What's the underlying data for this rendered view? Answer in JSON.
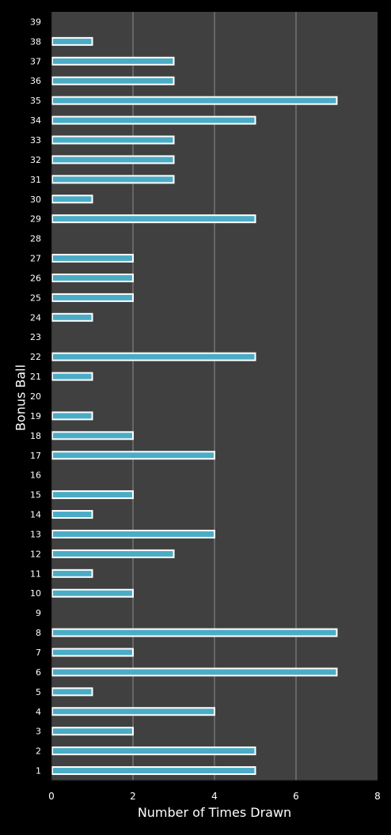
{
  "chart_data": {
    "type": "bar",
    "orientation": "horizontal",
    "xlabel": "Number of Times Drawn",
    "ylabel": "Bonus Ball",
    "xlim": [
      0,
      8
    ],
    "xticks": [
      "0",
      "2",
      "4",
      "6",
      "8"
    ],
    "categories": [
      "1",
      "2",
      "3",
      "4",
      "5",
      "6",
      "7",
      "8",
      "9",
      "10",
      "11",
      "12",
      "13",
      "14",
      "15",
      "16",
      "17",
      "18",
      "19",
      "20",
      "21",
      "22",
      "23",
      "24",
      "25",
      "26",
      "27",
      "28",
      "29",
      "30",
      "31",
      "32",
      "33",
      "34",
      "35",
      "36",
      "37",
      "38",
      "39"
    ],
    "values": [
      5,
      5,
      2,
      4,
      1,
      7,
      2,
      7,
      0,
      2,
      1,
      3,
      4,
      1,
      2,
      0,
      4,
      2,
      1,
      0,
      1,
      5,
      0,
      1,
      2,
      2,
      2,
      0,
      5,
      1,
      3,
      3,
      3,
      5,
      7,
      3,
      3,
      1,
      0
    ],
    "grid": true,
    "colors": {
      "background": "#000000",
      "plot_area": "#404040",
      "bar_fill": "#4bacc6",
      "bar_border": "#ffffff",
      "gridline": "#8c8c8c",
      "text": "#ffffff"
    }
  }
}
